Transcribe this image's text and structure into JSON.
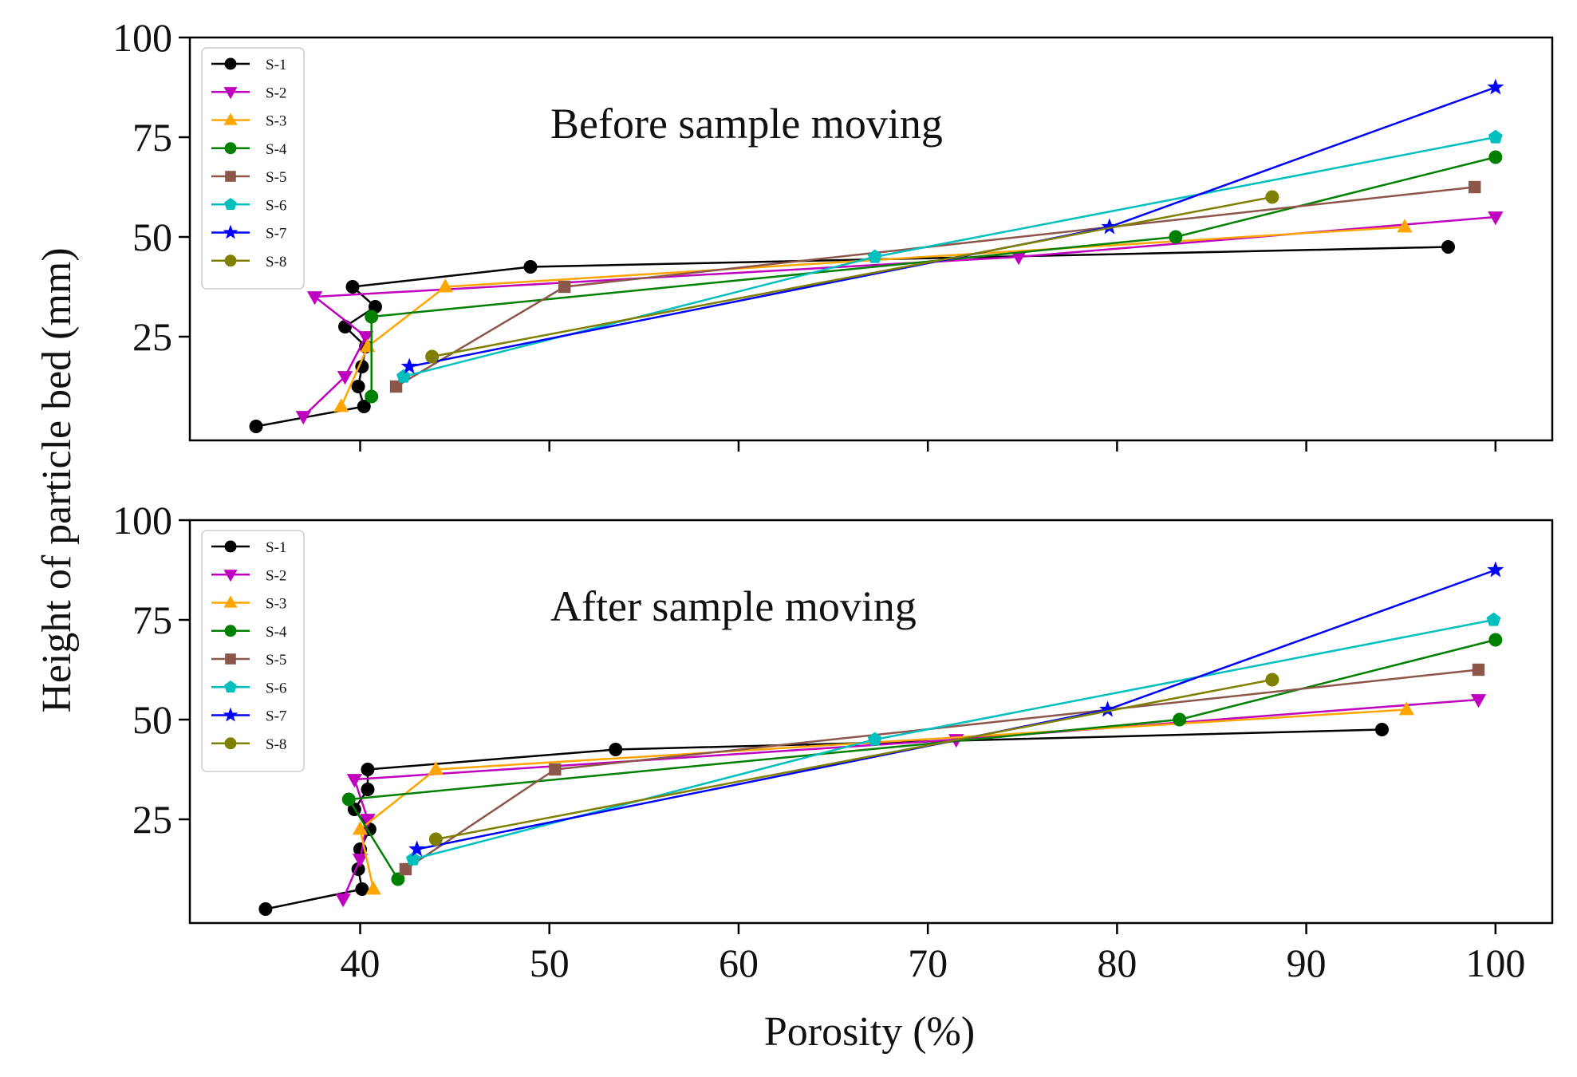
{
  "figure": {
    "ylabel": "Height of particle bed (mm)",
    "xlabel": "Porosity (%)"
  },
  "chart_data": [
    {
      "type": "line",
      "title": "",
      "annotation": "Before sample moving",
      "xlabel": "",
      "ylabel": "Height of particle bed (mm)",
      "xlim": [
        31,
        103
      ],
      "ylim": [
        -1,
        100
      ],
      "xticks": [
        40,
        50,
        60,
        70,
        80,
        90,
        100
      ],
      "xtick_labels_visible": false,
      "yticks": [
        25,
        50,
        75,
        100
      ],
      "ytick_labels": [
        "25",
        "50",
        "75",
        "100"
      ],
      "legend": "top-left",
      "series": [
        {
          "name": "S-1",
          "color": "#000000",
          "marker": "circle",
          "points": [
            [
              34.5,
              2.5
            ],
            [
              40.2,
              7.5
            ],
            [
              39.9,
              12.5
            ],
            [
              40.1,
              17.5
            ],
            [
              40.3,
              22.5
            ],
            [
              39.2,
              27.5
            ],
            [
              40.8,
              32.5
            ],
            [
              39.6,
              37.5
            ],
            [
              49.0,
              42.5
            ],
            [
              97.5,
              47.5
            ]
          ]
        },
        {
          "name": "S-2",
          "color": "#bf00bf",
          "marker": "triangle-down",
          "points": [
            [
              37.0,
              5.0
            ],
            [
              39.2,
              15.0
            ],
            [
              40.3,
              25.0
            ],
            [
              37.6,
              35.0
            ],
            [
              74.8,
              45.0
            ],
            [
              100.0,
              55.0
            ]
          ]
        },
        {
          "name": "S-3",
          "color": "#ffa500",
          "marker": "triangle-up",
          "points": [
            [
              39.0,
              7.5
            ],
            [
              40.4,
              22.5
            ],
            [
              44.5,
              37.5
            ],
            [
              95.2,
              52.5
            ]
          ]
        },
        {
          "name": "S-4",
          "color": "#008000",
          "marker": "circle",
          "points": [
            [
              40.6,
              10.0
            ],
            [
              40.6,
              30.0
            ],
            [
              83.1,
              50.0
            ],
            [
              100.0,
              70.0
            ]
          ]
        },
        {
          "name": "S-5",
          "color": "#8c564b",
          "marker": "square",
          "points": [
            [
              41.9,
              12.5
            ],
            [
              50.8,
              37.5
            ],
            [
              98.9,
              62.5
            ]
          ]
        },
        {
          "name": "S-6",
          "color": "#00bfbf",
          "marker": "pentagon",
          "points": [
            [
              42.3,
              15.0
            ],
            [
              67.2,
              45.0
            ],
            [
              100.0,
              75.0
            ]
          ]
        },
        {
          "name": "S-7",
          "color": "#0000ff",
          "marker": "star",
          "points": [
            [
              42.6,
              17.5
            ],
            [
              79.6,
              52.5
            ],
            [
              100.0,
              87.5
            ]
          ]
        },
        {
          "name": "S-8",
          "color": "#808000",
          "marker": "circle",
          "points": [
            [
              43.8,
              20.0
            ],
            [
              88.2,
              60.0
            ]
          ]
        }
      ]
    },
    {
      "type": "line",
      "title": "",
      "annotation": "After sample moving",
      "xlabel": "Porosity (%)",
      "ylabel": "Height of particle bed (mm)",
      "xlim": [
        31,
        103
      ],
      "ylim": [
        -1,
        100
      ],
      "xticks": [
        40,
        50,
        60,
        70,
        80,
        90,
        100
      ],
      "xtick_labels": [
        "40",
        "50",
        "60",
        "70",
        "80",
        "90",
        "100"
      ],
      "yticks": [
        25,
        50,
        75,
        100
      ],
      "ytick_labels": [
        "25",
        "50",
        "75",
        "100"
      ],
      "legend": "top-left",
      "series": [
        {
          "name": "S-1",
          "color": "#000000",
          "marker": "circle",
          "points": [
            [
              35.0,
              2.5
            ],
            [
              40.1,
              7.5
            ],
            [
              39.9,
              12.5
            ],
            [
              40.0,
              17.5
            ],
            [
              40.5,
              22.5
            ],
            [
              39.7,
              27.5
            ],
            [
              40.4,
              32.5
            ],
            [
              40.4,
              37.5
            ],
            [
              53.5,
              42.5
            ],
            [
              94.0,
              47.5
            ]
          ]
        },
        {
          "name": "S-2",
          "color": "#bf00bf",
          "marker": "triangle-down",
          "points": [
            [
              39.1,
              5.0
            ],
            [
              40.0,
              15.0
            ],
            [
              40.4,
              25.0
            ],
            [
              39.7,
              35.0
            ],
            [
              71.5,
              45.0
            ],
            [
              99.1,
              55.0
            ]
          ]
        },
        {
          "name": "S-3",
          "color": "#ffa500",
          "marker": "triangle-up",
          "points": [
            [
              40.7,
              7.5
            ],
            [
              40.0,
              22.5
            ],
            [
              44.0,
              37.5
            ],
            [
              95.3,
              52.5
            ]
          ]
        },
        {
          "name": "S-4",
          "color": "#008000",
          "marker": "circle",
          "points": [
            [
              42.0,
              10.0
            ],
            [
              39.4,
              30.0
            ],
            [
              83.3,
              50.0
            ],
            [
              100.0,
              70.0
            ]
          ]
        },
        {
          "name": "S-5",
          "color": "#8c564b",
          "marker": "square",
          "points": [
            [
              42.4,
              12.5
            ],
            [
              50.3,
              37.5
            ],
            [
              99.1,
              62.5
            ]
          ]
        },
        {
          "name": "S-6",
          "color": "#00bfbf",
          "marker": "pentagon",
          "points": [
            [
              42.8,
              15.0
            ],
            [
              67.2,
              45.0
            ],
            [
              99.9,
              75.0
            ]
          ]
        },
        {
          "name": "S-7",
          "color": "#0000ff",
          "marker": "star",
          "points": [
            [
              43.0,
              17.5
            ],
            [
              79.5,
              52.5
            ],
            [
              100.0,
              87.5
            ]
          ]
        },
        {
          "name": "S-8",
          "color": "#808000",
          "marker": "circle",
          "points": [
            [
              44.0,
              20.0
            ],
            [
              88.2,
              60.0
            ]
          ]
        }
      ]
    }
  ]
}
